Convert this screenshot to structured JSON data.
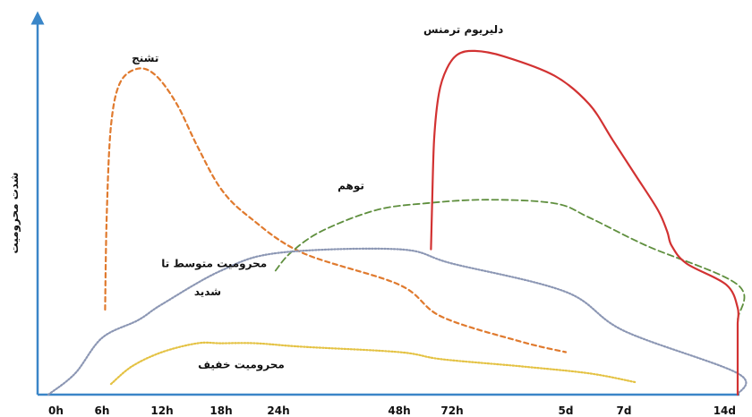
{
  "chart_data": {
    "type": "line",
    "title": "",
    "xlabel": "",
    "ylabel": "شدت محرومیت",
    "categories": [
      "0h",
      "6h",
      "12h",
      "18h",
      "24h",
      "48h",
      "72h",
      "5d",
      "7d",
      "14d"
    ],
    "ylim": [
      0,
      100
    ],
    "grid": false,
    "legend": "none",
    "series": [
      {
        "name": "تشنج",
        "color": "#e07a2e",
        "dash": "5,4",
        "stroke": 2.2,
        "points": [
          [
            1.05,
            24
          ],
          [
            1.08,
            52
          ],
          [
            1.15,
            76
          ],
          [
            1.3,
            88
          ],
          [
            1.6,
            92
          ],
          [
            1.9,
            90
          ],
          [
            2.25,
            82
          ],
          [
            2.6,
            70
          ],
          [
            3.0,
            58
          ],
          [
            3.5,
            50
          ],
          [
            4.2,
            40
          ],
          [
            5.0,
            31
          ],
          [
            5.8,
            22
          ],
          [
            6.6,
            15
          ],
          [
            7.0,
            12
          ]
        ]
      },
      {
        "name": "توهم",
        "color": "#5f8f3e",
        "dash": "7,4",
        "stroke": 1.8,
        "points": [
          [
            3.95,
            35
          ],
          [
            4.1,
            40
          ],
          [
            4.35,
            46
          ],
          [
            4.8,
            52
          ],
          [
            5.5,
            54
          ],
          [
            6.3,
            55
          ],
          [
            6.9,
            54
          ],
          [
            7.4,
            50
          ],
          [
            8.2,
            42
          ],
          [
            9.0,
            31
          ],
          [
            9.6,
            21
          ],
          [
            10.0,
            14
          ],
          [
            10.3,
            7
          ]
        ]
      },
      {
        "name": "محرومیت متوسط تا شدید",
        "color": "#8c97b4",
        "dash": "1.5,2",
        "stroke": 2.2,
        "points": [
          [
            0,
            0
          ],
          [
            0.5,
            6
          ],
          [
            1,
            16
          ],
          [
            1.6,
            21
          ],
          [
            2,
            25.5
          ],
          [
            3,
            35
          ],
          [
            4,
            40
          ],
          [
            5,
            41
          ],
          [
            6,
            37
          ],
          [
            7,
            29
          ],
          [
            8,
            18
          ],
          [
            9,
            6
          ],
          [
            9.4,
            0
          ]
        ]
      },
      {
        "name": "محرومیت خفیف",
        "color": "#e4c243",
        "dash": "1.5,2",
        "stroke": 2.2,
        "points": [
          [
            1.15,
            3
          ],
          [
            1.5,
            8
          ],
          [
            2,
            12
          ],
          [
            2.6,
            14.5
          ],
          [
            3,
            14.5
          ],
          [
            3.6,
            14.5
          ],
          [
            4.2,
            13.5
          ],
          [
            5,
            12
          ],
          [
            5.8,
            10
          ],
          [
            6.6,
            8
          ],
          [
            7.4,
            6
          ],
          [
            8.1,
            3.5
          ]
        ]
      },
      {
        "name": "دلیریوم ترمنس",
        "color": "#d23232",
        "dash": "",
        "stroke": 2.2,
        "points": [
          [
            5.6,
            41
          ],
          [
            5.62,
            53
          ],
          [
            5.66,
            72
          ],
          [
            5.75,
            85
          ],
          [
            5.9,
            92
          ],
          [
            6.05,
            96
          ],
          [
            6.2,
            97
          ],
          [
            6.45,
            95.5
          ],
          [
            6.9,
            90
          ],
          [
            7.4,
            82
          ],
          [
            7.8,
            72
          ],
          [
            8.1,
            62
          ],
          [
            8.3,
            52
          ],
          [
            8.38,
            46
          ],
          [
            8.42,
            42
          ],
          [
            8.55,
            37
          ],
          [
            8.9,
            31
          ],
          [
            9.3,
            24.5
          ],
          [
            9.6,
            20
          ],
          [
            9.9,
            16
          ],
          [
            10.2,
            13
          ],
          [
            10.55,
            11.5
          ],
          [
            10.9,
            9
          ],
          [
            11.25,
            4
          ],
          [
            11.7,
            0
          ]
        ]
      }
    ],
    "labels": [
      {
        "series": 0,
        "text": "تشنج",
        "at": [
          1.72,
          94
        ]
      },
      {
        "series": 4,
        "text": "دلیریوم ترمنس",
        "at": [
          6.1,
          102
        ]
      },
      {
        "series": 1,
        "text": "توهم",
        "at": [
          4.6,
          58
        ]
      },
      {
        "series": 2,
        "text": "محرومیت متوسط تا",
        "at": [
          3.8,
          36
        ],
        "anchor": "end"
      },
      {
        "series": 2,
        "text": "شدید",
        "at": [
          3.0,
          28
        ],
        "anchor": "end"
      },
      {
        "series": 3,
        "text": "محرومیت خفیف",
        "at": [
          4.05,
          7.5
        ],
        "anchor": "end"
      }
    ]
  }
}
